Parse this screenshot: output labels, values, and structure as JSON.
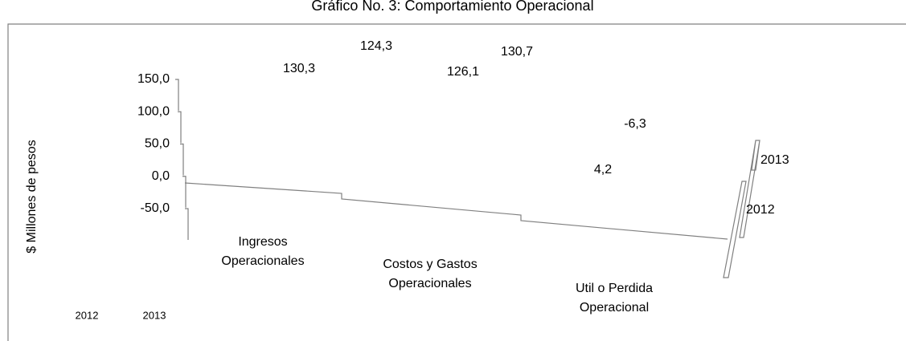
{
  "chart_data": {
    "type": "bar",
    "title": "Gráfico No. 3: Comportamiento Operacional",
    "y_label": "$ Millones de pesos",
    "categories": [
      [
        "Ingresos",
        "Operacionales"
      ],
      [
        "Costos y Gastos",
        "Operacionales"
      ],
      [
        "Util o Perdida",
        "Operacional"
      ]
    ],
    "series": [
      {
        "name": "2012",
        "values": [
          130.3,
          126.1,
          4.2
        ],
        "value_labels": [
          "130,3",
          "126,1",
          "4,2"
        ]
      },
      {
        "name": "2013",
        "values": [
          124.3,
          130.7,
          -6.3
        ],
        "value_labels": [
          "124,3",
          "130,7",
          "-6,3"
        ]
      }
    ],
    "ylim": [
      -50,
      150
    ],
    "yticks": [
      {
        "value": 150,
        "label": "150,0"
      },
      {
        "value": 100,
        "label": "100,0"
      },
      {
        "value": 50,
        "label": "50,0"
      },
      {
        "value": 0,
        "label": "0,0"
      },
      {
        "value": -50,
        "label": "-50,0"
      }
    ]
  }
}
